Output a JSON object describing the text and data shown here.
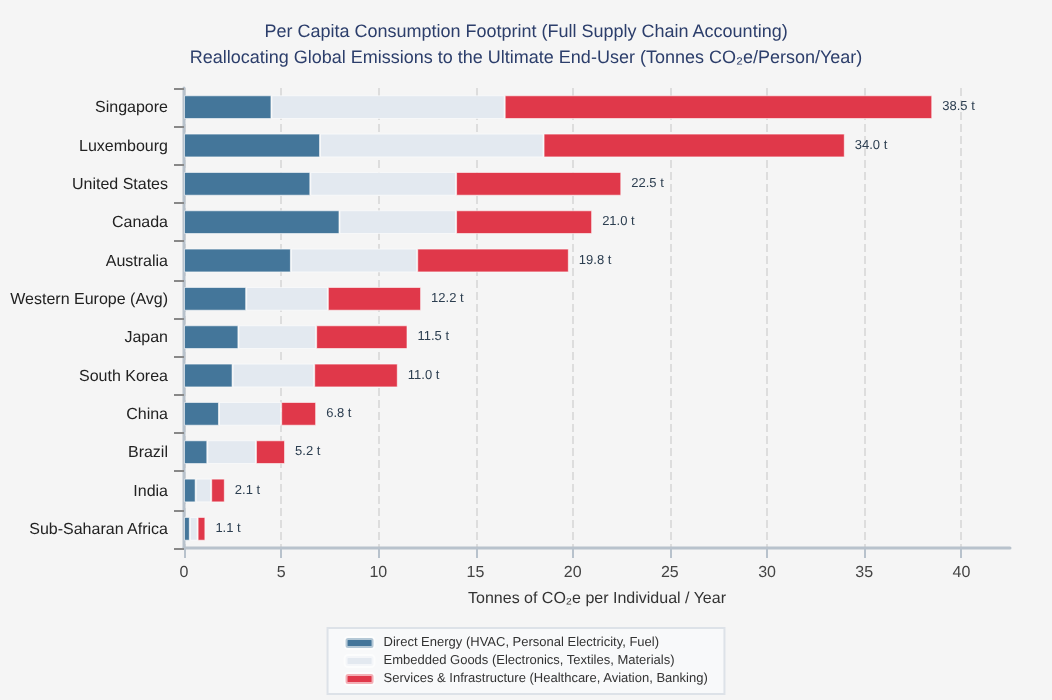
{
  "chart_data": {
    "type": "bar",
    "orientation": "horizontal",
    "stacked": true,
    "title": "Per Capita Consumption Footprint (Full Supply Chain Accounting)",
    "subtitle": "Reallocating Global Emissions to the Ultimate End-User (Tonnes CO₂e/Person/Year)",
    "xlabel": "Tonnes of CO₂e per Individual / Year",
    "categories": [
      "Singapore",
      "Luxembourg",
      "United States",
      "Canada",
      "Australia",
      "Western Europe (Avg)",
      "Japan",
      "South Korea",
      "China",
      "Brazil",
      "India",
      "Sub-Saharan Africa"
    ],
    "series": [
      {
        "name": "Direct Energy (HVAC, Personal Electricity, Fuel)",
        "color": "#44769a",
        "values": [
          4.5,
          7.0,
          6.5,
          8.0,
          5.5,
          3.2,
          2.8,
          2.5,
          1.8,
          1.2,
          0.6,
          0.3
        ]
      },
      {
        "name": "Embedded Goods (Electronics, Textiles, Materials)",
        "color": "#e3e9f0",
        "values": [
          12.0,
          11.5,
          7.5,
          6.0,
          6.5,
          4.2,
          4.0,
          4.2,
          3.2,
          2.5,
          0.8,
          0.4
        ]
      },
      {
        "name": "Services & Infrastructure (Healthcare, Aviation, Banking)",
        "color": "#e0384a",
        "values": [
          22.0,
          15.5,
          8.5,
          7.0,
          7.8,
          4.8,
          4.7,
          4.3,
          1.8,
          1.5,
          0.7,
          0.4
        ]
      }
    ],
    "totals": [
      "38.5 t",
      "34.0 t",
      "22.5 t",
      "21.0 t",
      "19.8 t",
      "12.2 t",
      "11.5 t",
      "11.0 t",
      "6.8 t",
      "5.2 t",
      "2.1 t",
      "1.1 t"
    ],
    "xlim": [
      0,
      42.5
    ],
    "xticks": [
      0,
      5,
      10,
      15,
      20,
      25,
      30,
      35,
      40
    ],
    "grid": "x",
    "legend": "bottom"
  }
}
